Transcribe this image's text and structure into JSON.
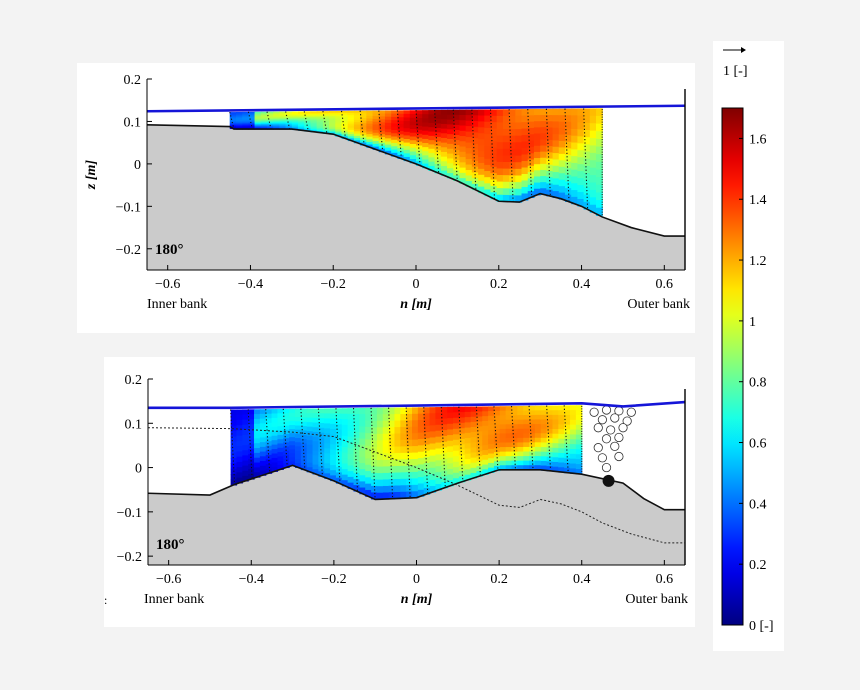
{
  "chart_data": [
    {
      "type": "heatmap",
      "ylabel": "z [m]",
      "xlabel": "n [m]",
      "annotation": "180°",
      "left_label": "Inner bank",
      "right_label": "Outer bank",
      "xlim": [
        -0.65,
        0.65
      ],
      "ylim": [
        -0.25,
        0.2
      ],
      "xticks": [
        -0.6,
        -0.4,
        -0.2,
        0,
        0.2,
        0.4,
        0.6
      ],
      "yticks": [
        -0.2,
        -0.1,
        0,
        0.1,
        0.2
      ],
      "water_surface": [
        [
          -0.65,
          0.124
        ],
        [
          0.65,
          0.137
        ]
      ],
      "bed_profile": [
        [
          -0.65,
          0.092
        ],
        [
          -0.45,
          0.088
        ],
        [
          -0.44,
          0.082
        ],
        [
          -0.3,
          0.082
        ],
        [
          -0.2,
          0.07
        ],
        [
          -0.1,
          0.035
        ],
        [
          0.0,
          0.0
        ],
        [
          0.1,
          -0.04
        ],
        [
          0.2,
          -0.088
        ],
        [
          0.25,
          -0.09
        ],
        [
          0.3,
          -0.07
        ],
        [
          0.35,
          -0.082
        ],
        [
          0.4,
          -0.1
        ],
        [
          0.45,
          -0.125
        ],
        [
          0.52,
          -0.15
        ],
        [
          0.6,
          -0.17
        ],
        [
          0.65,
          -0.17
        ]
      ],
      "measured_section": [
        -0.45,
        0.45
      ]
    },
    {
      "type": "heatmap",
      "ylabel": "",
      "xlabel": "n [m]",
      "annotation": "180°",
      "left_label": "Inner bank",
      "right_label": "Outer bank",
      "xlim": [
        -0.65,
        0.65
      ],
      "ylim": [
        -0.22,
        0.2
      ],
      "xticks": [
        -0.6,
        -0.4,
        -0.2,
        0,
        0.2,
        0.4,
        0.6
      ],
      "yticks": [
        -0.2,
        -0.1,
        0,
        0.1,
        0.2
      ],
      "water_surface": [
        [
          -0.65,
          0.135
        ],
        [
          -0.45,
          0.135
        ],
        [
          0.0,
          0.14
        ],
        [
          0.4,
          0.145
        ],
        [
          0.5,
          0.138
        ],
        [
          0.65,
          0.148
        ]
      ],
      "bed_profile": [
        [
          -0.65,
          -0.058
        ],
        [
          -0.5,
          -0.062
        ],
        [
          -0.44,
          -0.038
        ],
        [
          -0.3,
          0.005
        ],
        [
          -0.2,
          -0.03
        ],
        [
          -0.1,
          -0.072
        ],
        [
          0.0,
          -0.068
        ],
        [
          0.1,
          -0.035
        ],
        [
          0.2,
          -0.005
        ],
        [
          0.3,
          -0.005
        ],
        [
          0.4,
          -0.015
        ],
        [
          0.5,
          -0.035
        ],
        [
          0.55,
          -0.07
        ],
        [
          0.6,
          -0.095
        ],
        [
          0.65,
          -0.095
        ]
      ],
      "initial_bed": [
        [
          -0.65,
          0.09
        ],
        [
          -0.45,
          0.088
        ],
        [
          -0.3,
          0.08
        ],
        [
          -0.2,
          0.07
        ],
        [
          -0.1,
          0.035
        ],
        [
          0.0,
          0.0
        ],
        [
          0.1,
          -0.04
        ],
        [
          0.2,
          -0.085
        ],
        [
          0.25,
          -0.09
        ],
        [
          0.3,
          -0.072
        ],
        [
          0.35,
          -0.082
        ],
        [
          0.4,
          -0.1
        ],
        [
          0.45,
          -0.125
        ],
        [
          0.52,
          -0.15
        ],
        [
          0.6,
          -0.17
        ],
        [
          0.65,
          -0.17
        ]
      ],
      "measured_section": [
        -0.45,
        0.4
      ],
      "marker_point": [
        0.465,
        -0.03
      ]
    }
  ],
  "colorbar": {
    "reference_vector_label": "1 [-]",
    "ticks": [
      "0 [-]",
      "0.2",
      "0.4",
      "0.6",
      "0.8",
      "1",
      "1.2",
      "1.4",
      "1.6"
    ],
    "range": [
      0,
      1.7
    ],
    "colormap": "jet"
  },
  "colors": {
    "water_surface": "#1515d8",
    "bed": "#cbcbcb"
  },
  "stray_mark": ":"
}
